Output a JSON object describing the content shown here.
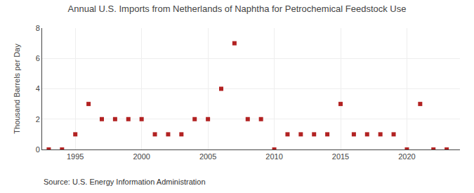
{
  "chart_data": {
    "type": "scatter",
    "title": "Annual U.S. Imports from Netherlands of Naphtha for Petrochemical Feedstock Use",
    "ylabel": "Thousand Barrels per Day",
    "annotations": [
      "Source: U.S. Energy Information Administration"
    ],
    "x": [
      1993,
      1994,
      1995,
      1996,
      1997,
      1998,
      1999,
      2000,
      2001,
      2002,
      2003,
      2004,
      2005,
      2006,
      2007,
      2008,
      2009,
      2010,
      2011,
      2012,
      2013,
      2014,
      2015,
      2016,
      2017,
      2018,
      2019,
      2020,
      2021,
      2022,
      2023
    ],
    "values": [
      0,
      0,
      1,
      3,
      2,
      2,
      2,
      2,
      1,
      1,
      1,
      2,
      2,
      4,
      7,
      2,
      2,
      0,
      1,
      1,
      1,
      1,
      3,
      1,
      1,
      1,
      1,
      0,
      3,
      0,
      0
    ],
    "color": "#b22222",
    "marker": "square",
    "xlim": [
      1992.5,
      2024
    ],
    "ylim": [
      0,
      8
    ],
    "xticks": [
      1995,
      2000,
      2005,
      2010,
      2015,
      2020
    ],
    "yticks": [
      0,
      2,
      4,
      6,
      8
    ],
    "grid": true
  }
}
